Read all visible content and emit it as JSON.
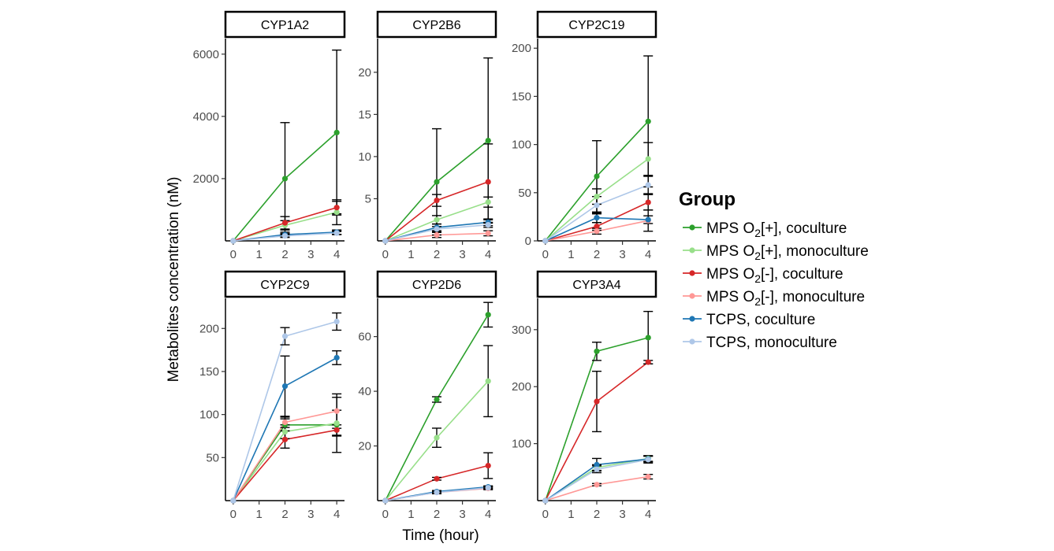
{
  "chart_data": {
    "type": "line",
    "xlabel": "Time (hour)",
    "ylabel": "Metabolites concentration (nM)",
    "x_ticks": [
      0,
      1,
      2,
      3,
      4
    ],
    "x": [
      0,
      2,
      4
    ],
    "xlim": [
      -0.3,
      4.3
    ],
    "legend": {
      "title": "Group",
      "position": "right",
      "entries": [
        {
          "name": "MPS O2[+], coculture",
          "base": "MPS O",
          "sub": "2",
          "rest": "[+], coculture",
          "color": "#2ca02c"
        },
        {
          "name": "MPS O2[+], monoculture",
          "base": "MPS O",
          "sub": "2",
          "rest": "[+], monoculture",
          "color": "#98df8a"
        },
        {
          "name": "MPS O2[-], coculture",
          "base": "MPS O",
          "sub": "2",
          "rest": "[-], coculture",
          "color": "#d62728"
        },
        {
          "name": "MPS O2[-], monoculture",
          "base": "MPS O",
          "sub": "2",
          "rest": "[-], monoculture",
          "color": "#ff9896"
        },
        {
          "name": "TCPS, coculture",
          "base": "TCPS, coculture",
          "sub": "",
          "rest": "",
          "color": "#1f77b4"
        },
        {
          "name": "TCPS, monoculture",
          "base": "TCPS, monoculture",
          "sub": "",
          "rest": "",
          "color": "#aec7e8"
        }
      ]
    },
    "panels": [
      {
        "title": "CYP1A2",
        "ylim": [
          0,
          6500
        ],
        "yticks": [
          2000,
          4000,
          6000
        ],
        "series": [
          {
            "name": "MPS O2[+], coculture",
            "values": [
              0,
              2000,
              3480
            ],
            "error": [
              0,
              1800,
              2650
            ]
          },
          {
            "name": "MPS O2[+], monoculture",
            "values": [
              0,
              500,
              920
            ],
            "error": [
              0,
              150,
              400
            ]
          },
          {
            "name": "MPS O2[-], coculture",
            "values": [
              0,
              580,
              1070
            ],
            "error": [
              0,
              200,
              200
            ]
          },
          {
            "name": "MPS O2[-], monoculture",
            "values": [
              0,
              180,
              270
            ],
            "error": [
              0,
              60,
              60
            ]
          },
          {
            "name": "TCPS, coculture",
            "values": [
              0,
              200,
              280
            ],
            "error": [
              0,
              80,
              70
            ]
          },
          {
            "name": "TCPS, monoculture",
            "values": [
              0,
              160,
              250
            ],
            "error": [
              0,
              50,
              50
            ]
          }
        ]
      },
      {
        "title": "CYP2B6",
        "ylim": [
          0,
          24
        ],
        "yticks": [
          5,
          10,
          15,
          20
        ],
        "series": [
          {
            "name": "MPS O2[+], coculture",
            "values": [
              0,
              7.0,
              11.9
            ],
            "error": [
              0,
              6.3,
              9.8
            ]
          },
          {
            "name": "MPS O2[+], monoculture",
            "values": [
              0,
              2.5,
              4.6
            ],
            "error": [
              0,
              0.5,
              0.6
            ]
          },
          {
            "name": "MPS O2[-], coculture",
            "values": [
              0,
              4.8,
              7.0
            ],
            "error": [
              0,
              0.7,
              4.5
            ]
          },
          {
            "name": "MPS O2[-], monoculture",
            "values": [
              0,
              0.7,
              0.9
            ],
            "error": [
              0,
              0.3,
              0.3
            ]
          },
          {
            "name": "TCPS, coculture",
            "values": [
              0,
              1.6,
              2.2
            ],
            "error": [
              0,
              0.4,
              0.4
            ]
          },
          {
            "name": "TCPS, monoculture",
            "values": [
              0,
              1.4,
              1.9
            ],
            "error": [
              0,
              0.3,
              0.3
            ]
          }
        ]
      },
      {
        "title": "CYP2C19",
        "ylim": [
          0,
          210
        ],
        "yticks": [
          0,
          50,
          100,
          150,
          200
        ],
        "series": [
          {
            "name": "MPS O2[+], coculture",
            "values": [
              0,
              67,
              124
            ],
            "error": [
              0,
              37,
              68
            ]
          },
          {
            "name": "MPS O2[+], monoculture",
            "values": [
              0,
              46,
              85
            ],
            "error": [
              0,
              8,
              17
            ]
          },
          {
            "name": "MPS O2[-], coculture",
            "values": [
              0,
              15,
              40
            ],
            "error": [
              0,
              4,
              8
            ]
          },
          {
            "name": "MPS O2[-], monoculture",
            "values": [
              0,
              10,
              21
            ],
            "error": [
              0,
              3,
              11
            ]
          },
          {
            "name": "TCPS, coculture",
            "values": [
              0,
              24,
              22
            ],
            "error": [
              0,
              5,
              4
            ]
          },
          {
            "name": "TCPS, monoculture",
            "values": [
              0,
              37,
              58
            ],
            "error": [
              0,
              9,
              9
            ]
          }
        ]
      },
      {
        "title": "CYP2C9",
        "ylim": [
          0,
          235
        ],
        "yticks": [
          50,
          100,
          150,
          200
        ],
        "series": [
          {
            "name": "MPS O2[+], coculture",
            "values": [
              0,
              88,
              88
            ],
            "error": [
              0,
              7,
              32
            ]
          },
          {
            "name": "MPS O2[+], monoculture",
            "values": [
              0,
              80,
              90
            ],
            "error": [
              0,
              8,
              15
            ]
          },
          {
            "name": "MPS O2[-], coculture",
            "values": [
              0,
              71,
              82
            ],
            "error": [
              0,
              10,
              6
            ]
          },
          {
            "name": "MPS O2[-], monoculture",
            "values": [
              0,
              91,
              104
            ],
            "error": [
              0,
              6,
              20
            ]
          },
          {
            "name": "TCPS, coculture",
            "values": [
              0,
              133,
              166
            ],
            "error": [
              0,
              35,
              8
            ]
          },
          {
            "name": "TCPS, monoculture",
            "values": [
              0,
              191,
              208
            ],
            "error": [
              0,
              10,
              10
            ]
          }
        ]
      },
      {
        "title": "CYP2D6",
        "ylim": [
          0,
          74
        ],
        "yticks": [
          20,
          40,
          60
        ],
        "series": [
          {
            "name": "MPS O2[+], coculture",
            "values": [
              0,
              37,
              68
            ],
            "error": [
              0,
              1,
              4.5
            ]
          },
          {
            "name": "MPS O2[+], monoculture",
            "values": [
              0,
              23,
              43.7
            ],
            "error": [
              0,
              3.5,
              13
            ]
          },
          {
            "name": "MPS O2[-], coculture",
            "values": [
              0,
              8,
              12.8
            ],
            "error": [
              0,
              0.5,
              4.7
            ]
          },
          {
            "name": "MPS O2[-], monoculture",
            "values": [
              0,
              3,
              4.5
            ],
            "error": [
              0,
              0.5,
              0.5
            ]
          },
          {
            "name": "TCPS, coculture",
            "values": [
              0,
              3.3,
              5
            ],
            "error": [
              0,
              0.4,
              0.4
            ]
          },
          {
            "name": "TCPS, monoculture",
            "values": [
              0,
              3,
              4.7
            ],
            "error": [
              0,
              0.4,
              0.4
            ]
          }
        ]
      },
      {
        "title": "CYP3A4",
        "ylim": [
          0,
          355
        ],
        "yticks": [
          100,
          200,
          300
        ],
        "series": [
          {
            "name": "MPS O2[+], coculture",
            "values": [
              0,
              262,
              286
            ],
            "error": [
              0,
              16,
              46
            ]
          },
          {
            "name": "MPS O2[+], monoculture",
            "values": [
              0,
              58,
              74
            ],
            "error": [
              0,
              5,
              5
            ]
          },
          {
            "name": "MPS O2[-], coculture",
            "values": [
              0,
              174,
              243
            ],
            "error": [
              0,
              53,
              3
            ]
          },
          {
            "name": "MPS O2[-], monoculture",
            "values": [
              0,
              28,
              42
            ],
            "error": [
              0,
              2,
              4
            ]
          },
          {
            "name": "TCPS, coculture",
            "values": [
              0,
              63,
              73
            ],
            "error": [
              0,
              11,
              5
            ]
          },
          {
            "name": "TCPS, monoculture",
            "values": [
              0,
              55,
              72
            ],
            "error": [
              0,
              6,
              6
            ]
          }
        ]
      }
    ]
  }
}
